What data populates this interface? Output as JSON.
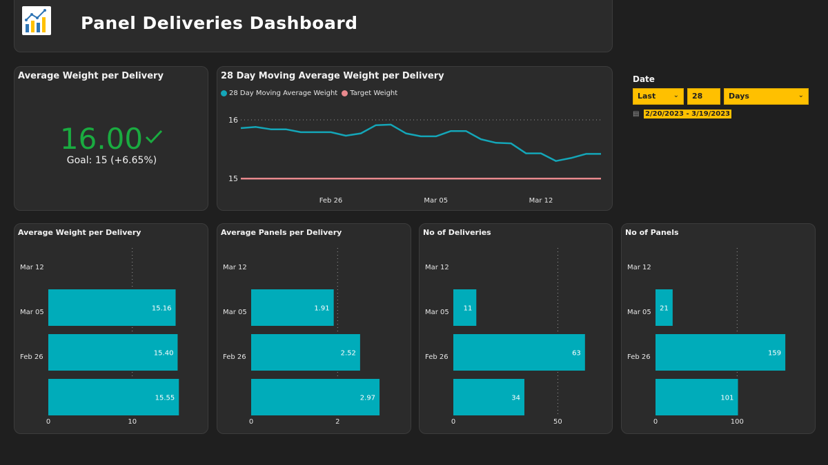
{
  "header": {
    "title": "Panel Deliveries Dashboard",
    "logo_icon": "bar-chart-logo-icon"
  },
  "kpi": {
    "title": "Average Weight per Delivery",
    "value": "16.00",
    "check_icon": "checkmark-icon",
    "goal_text": "Goal: 15 (+6.65%)",
    "value_color": "#1aab40"
  },
  "slicer": {
    "label": "Date",
    "mode": "Last",
    "count": "28",
    "unit": "Days",
    "range": "2/20/2023 - 3/19/2023",
    "calendar_icon": "calendar-icon",
    "accent": "#ffc000"
  },
  "chart_data": [
    {
      "type": "line",
      "title": "28 Day Moving Average Weight per Delivery",
      "x_ticks": [
        "Feb 26",
        "Mar 05",
        "Mar 12"
      ],
      "ylim": [
        14.85,
        16.2
      ],
      "y_ticks": [
        "16",
        "15"
      ],
      "grid": "dotted",
      "legend": "top-left",
      "series": [
        {
          "name": "28 Day Moving Average Weight",
          "color": "#14a6b8",
          "x": [
            "2/20",
            "2/21",
            "2/22",
            "2/23",
            "2/24",
            "2/25",
            "2/26",
            "2/27",
            "2/28",
            "3/01",
            "3/02",
            "3/03",
            "3/04",
            "3/05",
            "3/06",
            "3/07",
            "3/08",
            "3/09",
            "3/10",
            "3/11",
            "3/12",
            "3/13",
            "3/14",
            "3/15",
            "3/16"
          ],
          "values": [
            15.86,
            15.88,
            15.84,
            15.84,
            15.79,
            15.79,
            15.79,
            15.73,
            15.77,
            15.91,
            15.92,
            15.77,
            15.72,
            15.72,
            15.81,
            15.81,
            15.67,
            15.61,
            15.6,
            15.43,
            15.43,
            15.3,
            15.35,
            15.42,
            15.42
          ]
        },
        {
          "name": "Target Weight",
          "color": "#e8898d",
          "values": [
            15.0
          ]
        }
      ]
    },
    {
      "type": "bar",
      "title": "Average Weight per Delivery",
      "categories": [
        "Mar 12",
        "Mar 05",
        "Feb 26",
        ""
      ],
      "values": [
        null,
        15.16,
        15.4,
        15.55
      ],
      "labels": [
        "",
        "15.16",
        "15.40",
        "15.55"
      ],
      "x_ticks": [
        0,
        10
      ],
      "xlim": [
        0,
        17.5
      ],
      "color": "#00acba"
    },
    {
      "type": "bar",
      "title": "Average Panels per Delivery",
      "categories": [
        "Mar 12",
        "Mar 05",
        "Feb 26",
        ""
      ],
      "values": [
        null,
        1.91,
        2.52,
        2.97
      ],
      "labels": [
        "",
        "1.91",
        "2.52",
        "2.97"
      ],
      "x_ticks": [
        0,
        2
      ],
      "xlim": [
        0,
        3.4
      ],
      "color": "#00acba"
    },
    {
      "type": "bar",
      "title": "No of Deliveries",
      "categories": [
        "Mar 12",
        "Mar 05",
        "Feb 26",
        ""
      ],
      "values": [
        null,
        11,
        63,
        34
      ],
      "labels": [
        "",
        "11",
        "63",
        "34"
      ],
      "x_ticks": [
        0,
        50
      ],
      "xlim": [
        0,
        70
      ],
      "color": "#00acba"
    },
    {
      "type": "bar",
      "title": "No of Panels",
      "categories": [
        "Mar 12",
        "Mar 05",
        "Feb 26",
        ""
      ],
      "values": [
        null,
        21,
        159,
        101
      ],
      "labels": [
        "",
        "21",
        "159",
        "101"
      ],
      "x_ticks": [
        0,
        100
      ],
      "xlim": [
        0,
        180
      ],
      "color": "#00acba"
    }
  ]
}
